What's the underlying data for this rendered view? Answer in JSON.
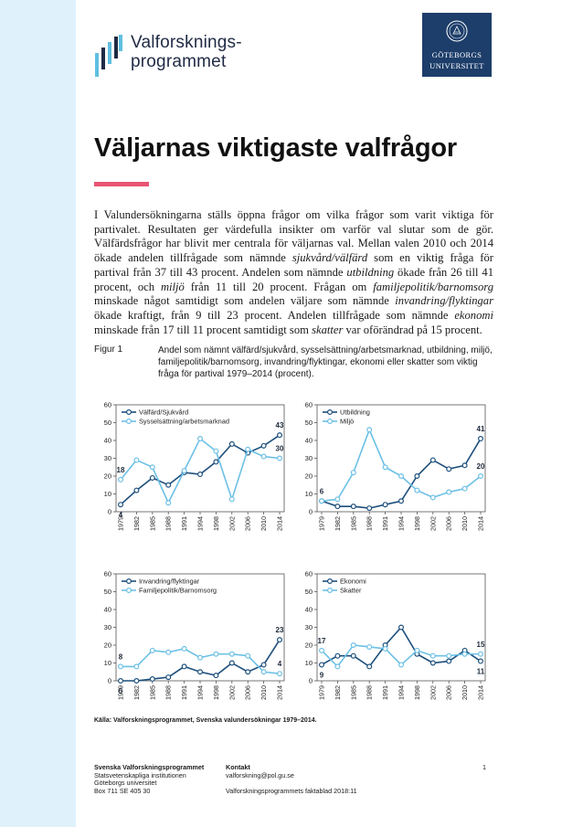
{
  "header": {
    "logo_line1": "Valforsknings-",
    "logo_line2": "programmet",
    "university_line1": "GÖTEBORGS",
    "university_line2": "UNIVERSITET",
    "colors": {
      "logo_dark": "#1f2a44",
      "logo_light": "#5fbfe0",
      "university_bg": "#1d3e6a"
    }
  },
  "title": "Väljarnas viktigaste valfrågor",
  "intro": {
    "p1": "I Valundersökningarna ställs öppna frågor om vilka frågor som varit viktiga för partivalet. Resultaten ger värdefulla insikter om varför val slutar som de gör. Välfärdsfrågor har blivit mer centrala för väljarnas val. Mellan valen 2010 och 2014 ökade andelen tillfrågade som nämnde ",
    "e1": "sjukvård/välfärd",
    "p2": " som en viktig fråga för partival från 37 till 43 procent. Andelen som nämnde ",
    "e2": "utbildning",
    "p3": " ökade från 26 till 41 procent, och ",
    "e3": "miljö",
    "p4": " från 11 till 20 procent. Frågan om ",
    "e4": "familjepolitik/barnomsorg",
    "p5": " minskade något samtidigt som andelen väljare som nämnde ",
    "e5": "invandring/flyktingar",
    "p6": " ökade kraftigt, från 9 till 23 procent. Andelen tillfrågade som nämnde ",
    "e6": "ekonomi",
    "p7": " minskade från 17 till 11 procent samtidigt som ",
    "e7": "skatter",
    "p8": " var oförändrad på 15 procent."
  },
  "figure": {
    "label": "Figur 1",
    "caption": "Andel som nämnt välfärd/sjukvård, sysselsättning/arbetsmarknad, utbildning, miljö, familjepolitik/barnomsorg, invandring/flyktingar, ekonomi eller skatter som viktig fråga för partival 1979–2014 (procent).",
    "source": "Källa: Valforskningsprogrammet, Svenska valundersökningar 1979–2014."
  },
  "chart_data": [
    {
      "type": "line",
      "x": [
        "1979",
        "1982",
        "1985",
        "1988",
        "1991",
        "1994",
        "1998",
        "2002",
        "2006",
        "2010",
        "2014"
      ],
      "ylim": [
        0,
        60
      ],
      "yticks": [
        0,
        10,
        20,
        30,
        40,
        50,
        60
      ],
      "grid": false,
      "legend": "top-left",
      "series": [
        {
          "name": "Välfärd/Sjukvård",
          "color": "#1d4f7c",
          "values": [
            4,
            12,
            19,
            15,
            22,
            21,
            28,
            38,
            33,
            37,
            43
          ]
        },
        {
          "name": "Sysselsättning/arbetsmarknad",
          "color": "#6cc0e5",
          "values": [
            18,
            29,
            25,
            5,
            23,
            41,
            34,
            7,
            35,
            31,
            30
          ]
        }
      ],
      "labels": [
        {
          "text": "18",
          "x": "1979",
          "y": 18,
          "dy": 8
        },
        {
          "text": "4",
          "x": "1979",
          "y": 4,
          "dy": -8
        },
        {
          "text": "43",
          "x": "2014",
          "y": 43,
          "dy": 8
        },
        {
          "text": "30",
          "x": "2014",
          "y": 30,
          "dy": 8
        }
      ]
    },
    {
      "type": "line",
      "x": [
        "1979",
        "1982",
        "1985",
        "1988",
        "1991",
        "1994",
        "1998",
        "2002",
        "2006",
        "2010",
        "2014"
      ],
      "ylim": [
        0,
        60
      ],
      "yticks": [
        0,
        10,
        20,
        30,
        40,
        50,
        60
      ],
      "grid": false,
      "legend": "top-left",
      "series": [
        {
          "name": "Utbildning",
          "color": "#1d4f7c",
          "values": [
            6,
            3,
            3,
            2,
            4,
            6,
            20,
            29,
            24,
            26,
            41
          ]
        },
        {
          "name": "Miljö",
          "color": "#6cc0e5",
          "values": [
            6,
            7,
            22,
            46,
            25,
            20,
            12,
            8,
            11,
            13,
            20
          ]
        }
      ],
      "labels": [
        {
          "text": "6",
          "x": "1979",
          "y": 6,
          "dy": 8
        },
        {
          "text": "41",
          "x": "2014",
          "y": 41,
          "dy": 8
        },
        {
          "text": "20",
          "x": "2014",
          "y": 20,
          "dy": 8
        }
      ]
    },
    {
      "type": "line",
      "x": [
        "1979",
        "1982",
        "1985",
        "1988",
        "1991",
        "1994",
        "1998",
        "2002",
        "2006",
        "2010",
        "2014"
      ],
      "ylim": [
        0,
        60
      ],
      "yticks": [
        0,
        10,
        20,
        30,
        40,
        50,
        60
      ],
      "grid": false,
      "legend": "top-left",
      "series": [
        {
          "name": "Invandring/flyktingar",
          "color": "#1d4f7c",
          "values": [
            0,
            0,
            1,
            2,
            8,
            5,
            3,
            10,
            5,
            9,
            23
          ]
        },
        {
          "name": "Familjepolitik/Barnomsorg",
          "color": "#6cc0e5",
          "values": [
            8,
            8,
            17,
            16,
            18,
            13,
            15,
            15,
            14,
            5,
            4
          ]
        }
      ],
      "labels": [
        {
          "text": "8",
          "x": "1979",
          "y": 8,
          "dy": 8
        },
        {
          "text": "0",
          "x": "1979",
          "y": 0,
          "dy": -8
        },
        {
          "text": "23",
          "x": "2014",
          "y": 23,
          "dy": 8
        },
        {
          "text": "4",
          "x": "2014",
          "y": 4,
          "dy": 8
        }
      ]
    },
    {
      "type": "line",
      "x": [
        "1979",
        "1982",
        "1985",
        "1988",
        "1991",
        "1994",
        "1998",
        "2002",
        "2006",
        "2010",
        "2014"
      ],
      "ylim": [
        0,
        60
      ],
      "yticks": [
        0,
        10,
        20,
        30,
        40,
        50,
        60
      ],
      "grid": false,
      "legend": "top-left",
      "series": [
        {
          "name": "Ekonomi",
          "color": "#1d4f7c",
          "values": [
            9,
            14,
            14,
            8,
            20,
            30,
            15,
            10,
            11,
            17,
            11
          ]
        },
        {
          "name": "Skatter",
          "color": "#6cc0e5",
          "values": [
            17,
            8,
            20,
            19,
            18,
            9,
            17,
            14,
            14,
            15,
            15
          ]
        }
      ],
      "labels": [
        {
          "text": "17",
          "x": "1979",
          "y": 17,
          "dy": 8
        },
        {
          "text": "9",
          "x": "1979",
          "y": 9,
          "dy": -8
        },
        {
          "text": "15",
          "x": "2014",
          "y": 15,
          "dy": 8
        },
        {
          "text": "11",
          "x": "2014",
          "y": 11,
          "dy": -8
        }
      ]
    }
  ],
  "footer": {
    "org_title": "Svenska Valforskningsprogrammet",
    "org_line1": "Statsvetenskapliga institutionen",
    "org_line2": "Göteborgs universitet",
    "org_line3": "Box 711 SE 405 30",
    "contact_title": "Kontakt",
    "contact_email": "valforskning@pol.gu.se",
    "series_name": "Valforskningsprogrammets faktablad 2018:11",
    "page_number": "1"
  }
}
